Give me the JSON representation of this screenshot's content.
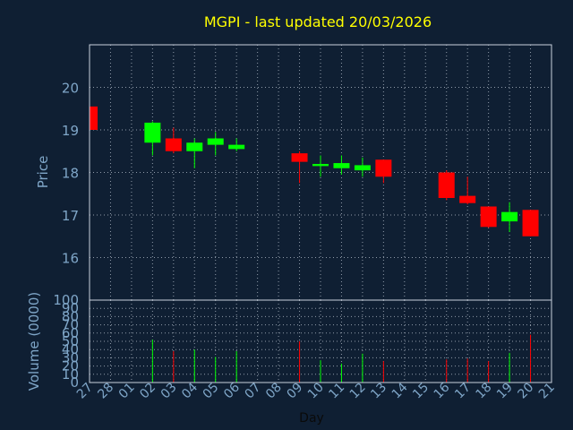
{
  "chart_data": {
    "type": "candlestick",
    "title": "MGPI - last updated 20/03/2026",
    "xlabel": "Day",
    "price_panel": {
      "ylabel": "Price",
      "ylim": [
        15,
        21
      ],
      "yticks": [
        16,
        17,
        18,
        19,
        20
      ],
      "grid": true
    },
    "volume_panel": {
      "ylabel": "Volume (0000)",
      "ylim": [
        0,
        100
      ],
      "yticks": [
        0,
        10,
        20,
        30,
        40,
        50,
        60,
        70,
        80,
        90,
        100
      ],
      "grid": true
    },
    "x_tick_labels": [
      "27",
      "28",
      "01",
      "02",
      "03",
      "04",
      "05",
      "06",
      "07",
      "08",
      "09",
      "10",
      "11",
      "12",
      "13",
      "14",
      "15",
      "16",
      "17",
      "18",
      "19",
      "20",
      "21"
    ],
    "candles": [
      {
        "day": "27",
        "open": 19.55,
        "high": 19.6,
        "low": 19.0,
        "close": 19.0,
        "volume": 0
      },
      {
        "day": "02",
        "open": 18.7,
        "high": 19.2,
        "low": 18.4,
        "close": 19.17,
        "volume": 52
      },
      {
        "day": "03",
        "open": 18.8,
        "high": 19.05,
        "low": 18.45,
        "close": 18.5,
        "volume": 38
      },
      {
        "day": "04",
        "open": 18.5,
        "high": 18.8,
        "low": 18.1,
        "close": 18.7,
        "volume": 40
      },
      {
        "day": "05",
        "open": 18.65,
        "high": 18.95,
        "low": 18.4,
        "close": 18.8,
        "volume": 31
      },
      {
        "day": "06",
        "open": 18.55,
        "high": 18.8,
        "low": 18.5,
        "close": 18.65,
        "volume": 38
      },
      {
        "day": "09",
        "open": 18.45,
        "high": 18.5,
        "low": 17.75,
        "close": 18.25,
        "volume": 50
      },
      {
        "day": "10",
        "open": 18.15,
        "high": 18.4,
        "low": 17.9,
        "close": 18.2,
        "volume": 27
      },
      {
        "day": "11",
        "open": 18.1,
        "high": 18.4,
        "low": 17.95,
        "close": 18.22,
        "volume": 23
      },
      {
        "day": "12",
        "open": 18.05,
        "high": 18.35,
        "low": 17.9,
        "close": 18.17,
        "volume": 35
      },
      {
        "day": "13",
        "open": 18.3,
        "high": 18.3,
        "low": 17.75,
        "close": 17.9,
        "volume": 26
      },
      {
        "day": "16",
        "open": 18.0,
        "high": 18.05,
        "low": 17.35,
        "close": 17.4,
        "volume": 28
      },
      {
        "day": "17",
        "open": 17.45,
        "high": 17.9,
        "low": 17.25,
        "close": 17.28,
        "volume": 29
      },
      {
        "day": "18",
        "open": 17.2,
        "high": 17.2,
        "low": 16.7,
        "close": 16.72,
        "volume": 26
      },
      {
        "day": "19",
        "open": 16.85,
        "high": 17.3,
        "low": 16.6,
        "close": 17.07,
        "volume": 36
      },
      {
        "day": "20",
        "open": 17.12,
        "high": 17.12,
        "low": 16.5,
        "close": 16.5,
        "volume": 58
      }
    ],
    "colors": {
      "background": "#0f1f33",
      "grid": "#c8d0dc",
      "axis_text": "#7fa6c8",
      "title": "#ffff00",
      "up": "#00ff00",
      "down": "#ff0000",
      "frame": "#c8d0dc"
    }
  }
}
